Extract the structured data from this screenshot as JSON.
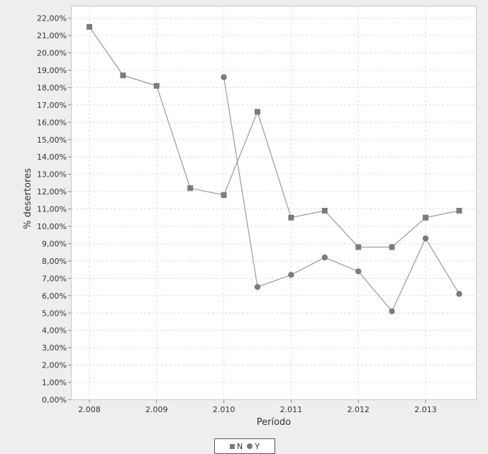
{
  "chart_data": {
    "type": "line",
    "xlabel": "Período",
    "ylabel": "% desertores",
    "x_ticks": [
      "2.008",
      "2.009",
      "2.010",
      "2.011",
      "2.012",
      "2.013"
    ],
    "y_ticks": [
      "0,00%",
      "1,00%",
      "2,00%",
      "3,00%",
      "4,00%",
      "5,00%",
      "6,00%",
      "7,00%",
      "8,00%",
      "9,00%",
      "10,00%",
      "11,00%",
      "12,00%",
      "13,00%",
      "14,00%",
      "15,00%",
      "16,00%",
      "17,00%",
      "18,00%",
      "19,00%",
      "20,00%",
      "21,00%",
      "22,00%"
    ],
    "ylim": [
      0,
      22.5
    ],
    "grid": true,
    "legend_position": "bottom",
    "series": [
      {
        "name": "N",
        "marker": "square",
        "color": "#7b7b7b",
        "points": [
          {
            "x": 2008.0,
            "y": 21.5
          },
          {
            "x": 2008.5,
            "y": 18.7
          },
          {
            "x": 2009.0,
            "y": 18.1
          },
          {
            "x": 2009.5,
            "y": 12.2
          },
          {
            "x": 2010.0,
            "y": 11.8
          },
          {
            "x": 2010.5,
            "y": 16.6
          },
          {
            "x": 2011.0,
            "y": 10.5
          },
          {
            "x": 2011.5,
            "y": 10.9
          },
          {
            "x": 2012.0,
            "y": 8.8
          },
          {
            "x": 2012.5,
            "y": 8.8
          },
          {
            "x": 2013.0,
            "y": 10.5
          },
          {
            "x": 2013.5,
            "y": 10.9
          }
        ]
      },
      {
        "name": "Y",
        "marker": "circle",
        "color": "#7b7b7b",
        "points": [
          {
            "x": 2010.0,
            "y": 18.6
          },
          {
            "x": 2010.5,
            "y": 6.5
          },
          {
            "x": 2011.0,
            "y": 7.2
          },
          {
            "x": 2011.5,
            "y": 8.2
          },
          {
            "x": 2012.0,
            "y": 7.4
          },
          {
            "x": 2012.5,
            "y": 5.1
          },
          {
            "x": 2013.0,
            "y": 9.3
          },
          {
            "x": 2013.5,
            "y": 6.1
          }
        ]
      }
    ]
  }
}
